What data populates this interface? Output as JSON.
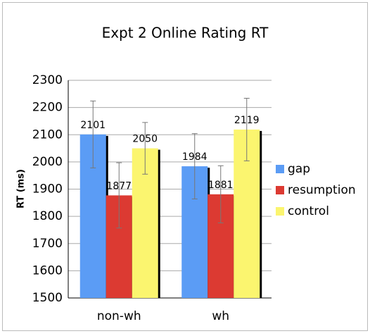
{
  "chart_data": {
    "type": "bar",
    "title": "Expt 2 Online Rating RT",
    "y_label": "RT (ms)",
    "categories": [
      "non-wh",
      "wh"
    ],
    "series": [
      {
        "name": "gap",
        "color": "#5b9cf5",
        "values": [
          2101,
          1984
        ],
        "errors": [
          123,
          120
        ]
      },
      {
        "name": "resumption",
        "color": "#dc3a32",
        "values": [
          1877,
          1881
        ],
        "errors": [
          120,
          105
        ]
      },
      {
        "name": "control",
        "color": "#fbf56f",
        "values": [
          2050,
          2119
        ],
        "errors": [
          95,
          115
        ]
      }
    ],
    "ylim": [
      1500,
      2300
    ],
    "yticks": [
      1500,
      1600,
      1700,
      1800,
      1900,
      2000,
      2100,
      2200,
      2300
    ],
    "grid": true,
    "legend": "right"
  }
}
